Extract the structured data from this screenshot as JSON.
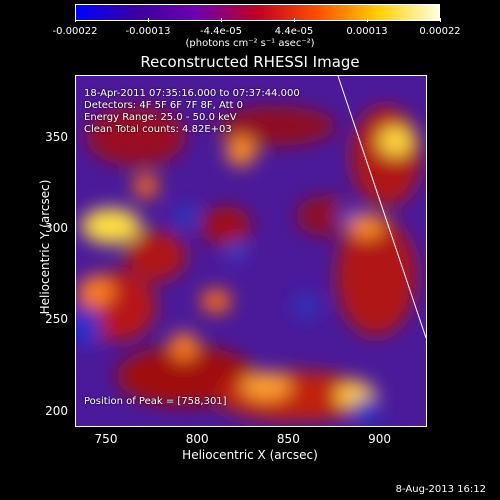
{
  "colorbar": {
    "ticks": [
      "-0.00022",
      "-0.00013",
      "-4.4e-05",
      "4.4e-05",
      "0.00013",
      "0.00022"
    ],
    "unit_label": "(photons cm⁻² s⁻¹ asec⁻²)",
    "colors": [
      "#0000ff",
      "#3a00a0",
      "#7000b0",
      "#c00020",
      "#ff5000",
      "#ffd000",
      "#ffffe0"
    ]
  },
  "title": "Reconstructed RHESSI Image",
  "info": {
    "time_range": "18-Apr-2011 07:35:16.000 to 07:37:44.000",
    "detectors": "Detectors: 4F 5F 6F 7F 8F, Att 0",
    "energy": "Energy Range: 25.0 - 50.0 keV",
    "clean": "Clean     Total counts: 4.82E+03",
    "peak": "Position of Peak = [758,301]"
  },
  "axes": {
    "xlabel": "Heliocentric X (arcsec)",
    "ylabel": "Heliocentric Y (arcsec)",
    "xticks": [
      "750",
      "800",
      "850",
      "900"
    ],
    "yticks": [
      "350",
      "300",
      "250",
      "200"
    ],
    "xlim": [
      733,
      926
    ],
    "ylim": [
      191,
      384
    ]
  },
  "footer": "8-Aug-2013 16:12"
}
